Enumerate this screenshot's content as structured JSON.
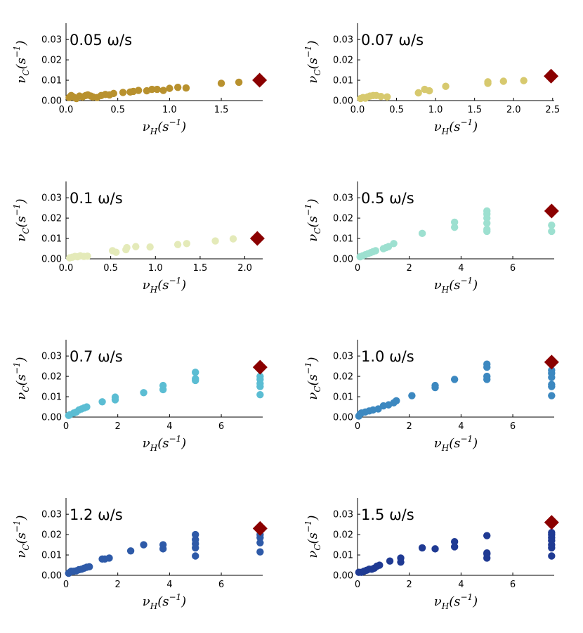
{
  "chart_data": [
    {
      "type": "scatter",
      "title": "0.05 ω/s",
      "xlabel": "ν_H(s^{-1})",
      "ylabel": "ν_C(s^{-1})",
      "xlim": [
        0,
        1.9
      ],
      "ylim": [
        0,
        0.038
      ],
      "xticks": [
        0.0,
        0.5,
        1.0,
        1.5
      ],
      "xtick_labels": [
        "0.0",
        "0.5",
        "1.0",
        "1.5"
      ],
      "yticks": [
        0,
        0.01,
        0.02,
        0.03
      ],
      "ytick_labels": [
        "0.00",
        "0.01",
        "0.02",
        "0.03"
      ],
      "color": "#b8912e",
      "points": [
        [
          0.03,
          0.0015
        ],
        [
          0.05,
          0.0025
        ],
        [
          0.07,
          0.0018
        ],
        [
          0.1,
          0.001
        ],
        [
          0.13,
          0.0022
        ],
        [
          0.16,
          0.0018
        ],
        [
          0.19,
          0.0025
        ],
        [
          0.21,
          0.0028
        ],
        [
          0.24,
          0.0022
        ],
        [
          0.26,
          0.0018
        ],
        [
          0.3,
          0.0015
        ],
        [
          0.34,
          0.0025
        ],
        [
          0.38,
          0.003
        ],
        [
          0.42,
          0.0028
        ],
        [
          0.46,
          0.0035
        ],
        [
          0.55,
          0.004
        ],
        [
          0.62,
          0.0042
        ],
        [
          0.65,
          0.0045
        ],
        [
          0.7,
          0.005
        ],
        [
          0.78,
          0.0048
        ],
        [
          0.83,
          0.0055
        ],
        [
          0.88,
          0.0055
        ],
        [
          0.94,
          0.005
        ],
        [
          1.0,
          0.006
        ],
        [
          1.08,
          0.0065
        ],
        [
          1.16,
          0.0062
        ],
        [
          1.5,
          0.0085
        ],
        [
          1.67,
          0.009
        ]
      ],
      "marker": {
        "x": 1.87,
        "y": 0.01,
        "shape": "diamond",
        "color": "#8b0000"
      }
    },
    {
      "type": "scatter",
      "title": "0.07 ω/s",
      "xlabel": "ν_H(s^{-1})",
      "ylabel": "ν_C(s^{-1})",
      "xlim": [
        0,
        2.52
      ],
      "ylim": [
        0,
        0.038
      ],
      "xticks": [
        0.0,
        0.5,
        1.0,
        1.5,
        2.0,
        2.5
      ],
      "xtick_labels": [
        "0.0",
        "0.5",
        "1.0",
        "1.5",
        "2.0",
        "2.5"
      ],
      "yticks": [
        0,
        0.01,
        0.02,
        0.03
      ],
      "ytick_labels": [
        "0.00",
        "0.01",
        "0.02",
        "0.03"
      ],
      "color": "#d7c96e",
      "points": [
        [
          0.04,
          0.001
        ],
        [
          0.07,
          0.0015
        ],
        [
          0.1,
          0.0012
        ],
        [
          0.13,
          0.0018
        ],
        [
          0.16,
          0.0022
        ],
        [
          0.2,
          0.0025
        ],
        [
          0.24,
          0.0025
        ],
        [
          0.3,
          0.002
        ],
        [
          0.38,
          0.0018
        ],
        [
          0.78,
          0.0038
        ],
        [
          0.86,
          0.0055
        ],
        [
          0.92,
          0.0048
        ],
        [
          1.13,
          0.007
        ],
        [
          1.67,
          0.0085
        ],
        [
          1.67,
          0.0092
        ],
        [
          1.87,
          0.0095
        ],
        [
          2.13,
          0.0098
        ]
      ],
      "marker": {
        "x": 2.48,
        "y": 0.012,
        "shape": "diamond",
        "color": "#8b0000"
      }
    },
    {
      "type": "scatter",
      "title": "0.1 ω/s",
      "xlabel": "ν_H(s^{-1})",
      "ylabel": "ν_C(s^{-1})",
      "xlim": [
        0,
        2.2
      ],
      "ylim": [
        0,
        0.038
      ],
      "xticks": [
        0.0,
        0.5,
        1.0,
        1.5,
        2.0
      ],
      "xtick_labels": [
        "0.0",
        "0.5",
        "1.0",
        "1.5",
        "2.0"
      ],
      "yticks": [
        0,
        0.01,
        0.02,
        0.03
      ],
      "ytick_labels": [
        "0.00",
        "0.01",
        "0.02",
        "0.03"
      ],
      "color": "#e4eab9",
      "points": [
        [
          0.04,
          0.0005
        ],
        [
          0.07,
          0.0008
        ],
        [
          0.1,
          0.0012
        ],
        [
          0.13,
          0.001
        ],
        [
          0.16,
          0.0015
        ],
        [
          0.2,
          0.0012
        ],
        [
          0.24,
          0.0013
        ],
        [
          0.52,
          0.004
        ],
        [
          0.56,
          0.0032
        ],
        [
          0.67,
          0.0045
        ],
        [
          0.68,
          0.0055
        ],
        [
          0.78,
          0.006
        ],
        [
          0.94,
          0.0058
        ],
        [
          1.25,
          0.007
        ],
        [
          1.35,
          0.0075
        ],
        [
          1.67,
          0.0088
        ],
        [
          1.87,
          0.0098
        ]
      ],
      "marker": {
        "x": 2.14,
        "y": 0.01,
        "shape": "diamond",
        "color": "#8b0000"
      }
    },
    {
      "type": "scatter",
      "title": "0.5 ω/s",
      "xlabel": "ν_H(s^{-1})",
      "ylabel": "ν_C(s^{-1})",
      "xlim": [
        0,
        7.6
      ],
      "ylim": [
        0,
        0.038
      ],
      "xticks": [
        0,
        2,
        4,
        6
      ],
      "xtick_labels": [
        "0",
        "2",
        "4",
        "6"
      ],
      "yticks": [
        0,
        0.01,
        0.02,
        0.03
      ],
      "ytick_labels": [
        "0.00",
        "0.01",
        "0.02",
        "0.03"
      ],
      "color": "#9de0d0",
      "points": [
        [
          0.1,
          0.001
        ],
        [
          0.2,
          0.0015
        ],
        [
          0.3,
          0.002
        ],
        [
          0.4,
          0.0025
        ],
        [
          0.5,
          0.003
        ],
        [
          0.6,
          0.0035
        ],
        [
          0.7,
          0.004
        ],
        [
          1.0,
          0.005
        ],
        [
          1.1,
          0.0055
        ],
        [
          1.2,
          0.006
        ],
        [
          1.4,
          0.0075
        ],
        [
          2.5,
          0.0125
        ],
        [
          3.75,
          0.0155
        ],
        [
          3.75,
          0.018
        ],
        [
          5.0,
          0.0135
        ],
        [
          5.0,
          0.0145
        ],
        [
          5.0,
          0.0175
        ],
        [
          5.0,
          0.02
        ],
        [
          5.0,
          0.022
        ],
        [
          5.0,
          0.0235
        ],
        [
          7.5,
          0.0135
        ],
        [
          7.5,
          0.0165
        ]
      ],
      "marker": {
        "x": 7.5,
        "y": 0.0235,
        "shape": "diamond",
        "color": "#8b0000"
      }
    },
    {
      "type": "scatter",
      "title": "0.7 ω/s",
      "xlabel": "ν_H(s^{-1})",
      "ylabel": "ν_C(s^{-1})",
      "xlim": [
        0,
        7.6
      ],
      "ylim": [
        0,
        0.038
      ],
      "xticks": [
        0,
        2,
        4,
        6
      ],
      "xtick_labels": [
        "0",
        "2",
        "4",
        "6"
      ],
      "yticks": [
        0,
        0.01,
        0.02,
        0.03
      ],
      "ytick_labels": [
        "0.00",
        "0.01",
        "0.02",
        "0.03"
      ],
      "color": "#5bbdd3",
      "points": [
        [
          0.1,
          0.0008
        ],
        [
          0.15,
          0.0012
        ],
        [
          0.3,
          0.002
        ],
        [
          0.4,
          0.0025
        ],
        [
          0.5,
          0.0035
        ],
        [
          0.6,
          0.004
        ],
        [
          0.7,
          0.0045
        ],
        [
          0.8,
          0.005
        ],
        [
          1.4,
          0.0075
        ],
        [
          1.9,
          0.0085
        ],
        [
          1.9,
          0.0098
        ],
        [
          3.0,
          0.012
        ],
        [
          3.75,
          0.0135
        ],
        [
          3.75,
          0.0155
        ],
        [
          5.0,
          0.018
        ],
        [
          5.0,
          0.0188
        ],
        [
          5.0,
          0.022
        ],
        [
          7.5,
          0.011
        ],
        [
          7.5,
          0.015
        ],
        [
          7.5,
          0.0165
        ],
        [
          7.5,
          0.0185
        ],
        [
          7.5,
          0.02
        ]
      ],
      "marker": {
        "x": 7.5,
        "y": 0.0245,
        "shape": "diamond",
        "color": "#8b0000"
      }
    },
    {
      "type": "scatter",
      "title": "1.0 ω/s",
      "xlabel": "ν_H(s^{-1})",
      "ylabel": "ν_C(s^{-1})",
      "xlim": [
        0,
        7.6
      ],
      "ylim": [
        0,
        0.038
      ],
      "xticks": [
        0,
        2,
        4,
        6
      ],
      "xtick_labels": [
        "0",
        "2",
        "4",
        "6"
      ],
      "yticks": [
        0,
        0.01,
        0.02,
        0.03
      ],
      "ytick_labels": [
        "0.00",
        "0.01",
        "0.02",
        "0.03"
      ],
      "color": "#3c88c0",
      "points": [
        [
          0.05,
          0.0005
        ],
        [
          0.1,
          0.0015
        ],
        [
          0.15,
          0.002
        ],
        [
          0.3,
          0.0025
        ],
        [
          0.45,
          0.003
        ],
        [
          0.6,
          0.0035
        ],
        [
          0.8,
          0.004
        ],
        [
          1.0,
          0.0055
        ],
        [
          1.2,
          0.006
        ],
        [
          1.4,
          0.007
        ],
        [
          1.5,
          0.008
        ],
        [
          2.1,
          0.0105
        ],
        [
          3.0,
          0.0145
        ],
        [
          3.0,
          0.0155
        ],
        [
          3.75,
          0.0185
        ],
        [
          5.0,
          0.0185
        ],
        [
          5.0,
          0.02
        ],
        [
          5.0,
          0.0245
        ],
        [
          5.0,
          0.026
        ],
        [
          7.5,
          0.0105
        ],
        [
          7.5,
          0.015
        ],
        [
          7.5,
          0.016
        ],
        [
          7.5,
          0.0195
        ],
        [
          7.5,
          0.0215
        ],
        [
          7.5,
          0.023
        ]
      ],
      "marker": {
        "x": 7.5,
        "y": 0.027,
        "shape": "diamond",
        "color": "#8b0000"
      }
    },
    {
      "type": "scatter",
      "title": "1.2 ω/s",
      "xlabel": "ν_H(s^{-1})",
      "ylabel": "ν_C(s^{-1})",
      "xlim": [
        0,
        7.6
      ],
      "ylim": [
        0,
        0.038
      ],
      "xticks": [
        0,
        2,
        4,
        6
      ],
      "xtick_labels": [
        "0",
        "2",
        "4",
        "6"
      ],
      "yticks": [
        0,
        0.01,
        0.02,
        0.03
      ],
      "ytick_labels": [
        "0.00",
        "0.01",
        "0.02",
        "0.03"
      ],
      "color": "#2e5aa8",
      "points": [
        [
          0.1,
          0.001
        ],
        [
          0.15,
          0.0015
        ],
        [
          0.2,
          0.002
        ],
        [
          0.3,
          0.002
        ],
        [
          0.4,
          0.0022
        ],
        [
          0.5,
          0.0028
        ],
        [
          0.6,
          0.003
        ],
        [
          0.7,
          0.0035
        ],
        [
          0.8,
          0.004
        ],
        [
          0.9,
          0.0042
        ],
        [
          1.4,
          0.008
        ],
        [
          1.5,
          0.008
        ],
        [
          1.67,
          0.0085
        ],
        [
          2.5,
          0.012
        ],
        [
          3.0,
          0.015
        ],
        [
          3.75,
          0.013
        ],
        [
          3.75,
          0.015
        ],
        [
          5.0,
          0.0095
        ],
        [
          5.0,
          0.0135
        ],
        [
          5.0,
          0.0155
        ],
        [
          5.0,
          0.0175
        ],
        [
          5.0,
          0.02
        ],
        [
          7.5,
          0.0115
        ],
        [
          7.5,
          0.016
        ],
        [
          7.5,
          0.0185
        ],
        [
          7.5,
          0.02
        ]
      ],
      "marker": {
        "x": 7.5,
        "y": 0.023,
        "shape": "diamond",
        "color": "#8b0000"
      }
    },
    {
      "type": "scatter",
      "title": "1.5 ω/s",
      "xlabel": "ν_H(s^{-1})",
      "ylabel": "ν_C(s^{-1})",
      "xlim": [
        0,
        7.6
      ],
      "ylim": [
        0,
        0.038
      ],
      "xticks": [
        0,
        2,
        4,
        6
      ],
      "xtick_labels": [
        "0",
        "2",
        "4",
        "6"
      ],
      "yticks": [
        0,
        0.01,
        0.02,
        0.03
      ],
      "ytick_labels": [
        "0.00",
        "0.01",
        "0.02",
        "0.03"
      ],
      "color": "#1f3a93",
      "points": [
        [
          0.05,
          0.0015
        ],
        [
          0.15,
          0.0015
        ],
        [
          0.25,
          0.002
        ],
        [
          0.35,
          0.0025
        ],
        [
          0.45,
          0.003
        ],
        [
          0.55,
          0.003
        ],
        [
          0.65,
          0.0035
        ],
        [
          0.75,
          0.0045
        ],
        [
          0.85,
          0.005
        ],
        [
          1.25,
          0.007
        ],
        [
          1.67,
          0.0065
        ],
        [
          1.67,
          0.0085
        ],
        [
          2.5,
          0.0135
        ],
        [
          3.0,
          0.013
        ],
        [
          3.75,
          0.014
        ],
        [
          3.75,
          0.0165
        ],
        [
          5.0,
          0.0085
        ],
        [
          5.0,
          0.0105
        ],
        [
          5.0,
          0.011
        ],
        [
          5.0,
          0.0195
        ],
        [
          7.5,
          0.0095
        ],
        [
          7.5,
          0.0135
        ],
        [
          7.5,
          0.015
        ],
        [
          7.5,
          0.017
        ],
        [
          7.5,
          0.0185
        ],
        [
          7.5,
          0.02
        ],
        [
          7.5,
          0.021
        ]
      ],
      "marker": {
        "x": 7.5,
        "y": 0.026,
        "shape": "diamond",
        "color": "#8b0000"
      }
    }
  ]
}
